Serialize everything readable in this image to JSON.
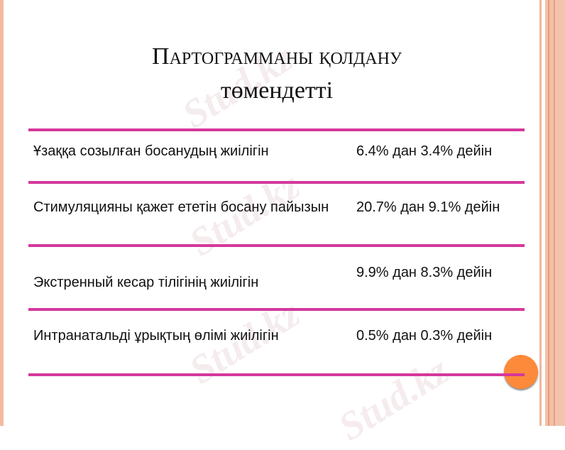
{
  "title": {
    "line1": "Партограмманы қолдану",
    "line2": "төмендетті"
  },
  "watermark": "Stud.kz",
  "rows": [
    {
      "label": "Ұзаққа созылған босанудың жиілігін",
      "value": " 6.4% дан 3.4% дейін"
    },
    {
      "label": "Стимуляцияны қажет ететін босану пайызын",
      "value": "20.7% дан 9.1% дейін"
    },
    {
      "label": "Экстренный кесар тілігінің жиілігін",
      "value": " 9.9% дан 8.3% дейін"
    },
    {
      "label": "Интранатальді ұрықтың өлімі жиілігін",
      "value": " 0.5% дан 0.3% дейін"
    }
  ],
  "colors": {
    "rule": "#d4389c",
    "accent_dot": "#fd8a3a",
    "border": "#f2c0aa"
  }
}
